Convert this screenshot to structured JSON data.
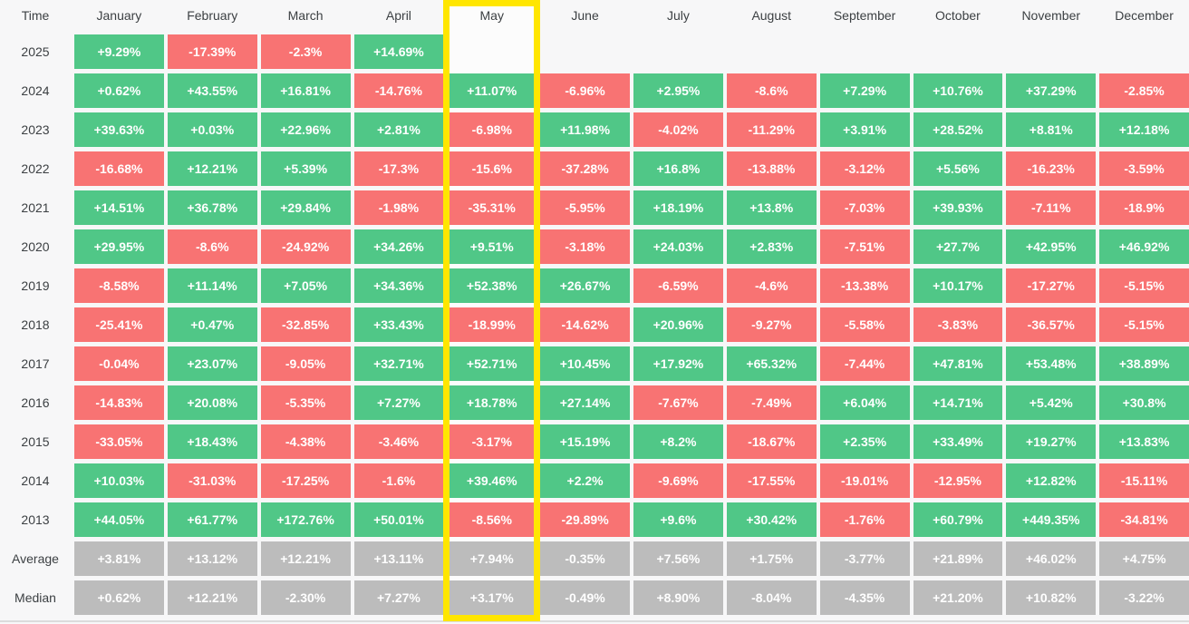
{
  "colors": {
    "positive": "#50c787",
    "negative": "#f87373",
    "neutral": "#bcbcbc",
    "highlight": "#ffe600",
    "highlight-bg": "#fcfcfc",
    "label-text": "#3c4043",
    "cell-text": "#ffffff",
    "page-bg": "#f7f7f8",
    "divider": "#dcdcdc"
  },
  "chart_data": {
    "type": "heatmap",
    "corner_label": "Time",
    "highlight_column": "May",
    "legend": "green = positive monthly return, red = negative monthly return, gray = summary rows",
    "categories": [
      "January",
      "February",
      "March",
      "April",
      "May",
      "June",
      "July",
      "August",
      "September",
      "October",
      "November",
      "December"
    ],
    "rows": [
      {
        "label": "2025",
        "type": "year",
        "values": [
          "+9.29%",
          "-17.39%",
          "-2.3%",
          "+14.69%",
          "",
          null,
          null,
          null,
          null,
          null,
          null,
          null
        ]
      },
      {
        "label": "2024",
        "type": "year",
        "values": [
          "+0.62%",
          "+43.55%",
          "+16.81%",
          "-14.76%",
          "+11.07%",
          "-6.96%",
          "+2.95%",
          "-8.6%",
          "+7.29%",
          "+10.76%",
          "+37.29%",
          "-2.85%"
        ]
      },
      {
        "label": "2023",
        "type": "year",
        "values": [
          "+39.63%",
          "+0.03%",
          "+22.96%",
          "+2.81%",
          "-6.98%",
          "+11.98%",
          "-4.02%",
          "-11.29%",
          "+3.91%",
          "+28.52%",
          "+8.81%",
          "+12.18%"
        ]
      },
      {
        "label": "2022",
        "type": "year",
        "values": [
          "-16.68%",
          "+12.21%",
          "+5.39%",
          "-17.3%",
          "-15.6%",
          "-37.28%",
          "+16.8%",
          "-13.88%",
          "-3.12%",
          "+5.56%",
          "-16.23%",
          "-3.59%"
        ]
      },
      {
        "label": "2021",
        "type": "year",
        "values": [
          "+14.51%",
          "+36.78%",
          "+29.84%",
          "-1.98%",
          "-35.31%",
          "-5.95%",
          "+18.19%",
          "+13.8%",
          "-7.03%",
          "+39.93%",
          "-7.11%",
          "-18.9%"
        ]
      },
      {
        "label": "2020",
        "type": "year",
        "values": [
          "+29.95%",
          "-8.6%",
          "-24.92%",
          "+34.26%",
          "+9.51%",
          "-3.18%",
          "+24.03%",
          "+2.83%",
          "-7.51%",
          "+27.7%",
          "+42.95%",
          "+46.92%"
        ]
      },
      {
        "label": "2019",
        "type": "year",
        "values": [
          "-8.58%",
          "+11.14%",
          "+7.05%",
          "+34.36%",
          "+52.38%",
          "+26.67%",
          "-6.59%",
          "-4.6%",
          "-13.38%",
          "+10.17%",
          "-17.27%",
          "-5.15%"
        ]
      },
      {
        "label": "2018",
        "type": "year",
        "values": [
          "-25.41%",
          "+0.47%",
          "-32.85%",
          "+33.43%",
          "-18.99%",
          "-14.62%",
          "+20.96%",
          "-9.27%",
          "-5.58%",
          "-3.83%",
          "-36.57%",
          "-5.15%"
        ]
      },
      {
        "label": "2017",
        "type": "year",
        "values": [
          "-0.04%",
          "+23.07%",
          "-9.05%",
          "+32.71%",
          "+52.71%",
          "+10.45%",
          "+17.92%",
          "+65.32%",
          "-7.44%",
          "+47.81%",
          "+53.48%",
          "+38.89%"
        ]
      },
      {
        "label": "2016",
        "type": "year",
        "values": [
          "-14.83%",
          "+20.08%",
          "-5.35%",
          "+7.27%",
          "+18.78%",
          "+27.14%",
          "-7.67%",
          "-7.49%",
          "+6.04%",
          "+14.71%",
          "+5.42%",
          "+30.8%"
        ]
      },
      {
        "label": "2015",
        "type": "year",
        "values": [
          "-33.05%",
          "+18.43%",
          "-4.38%",
          "-3.46%",
          "-3.17%",
          "+15.19%",
          "+8.2%",
          "-18.67%",
          "+2.35%",
          "+33.49%",
          "+19.27%",
          "+13.83%"
        ]
      },
      {
        "label": "2014",
        "type": "year",
        "values": [
          "+10.03%",
          "-31.03%",
          "-17.25%",
          "-1.6%",
          "+39.46%",
          "+2.2%",
          "-9.69%",
          "-17.55%",
          "-19.01%",
          "-12.95%",
          "+12.82%",
          "-15.11%"
        ]
      },
      {
        "label": "2013",
        "type": "year",
        "values": [
          "+44.05%",
          "+61.77%",
          "+172.76%",
          "+50.01%",
          "-8.56%",
          "-29.89%",
          "+9.6%",
          "+30.42%",
          "-1.76%",
          "+60.79%",
          "+449.35%",
          "-34.81%"
        ]
      },
      {
        "label": "Average",
        "type": "summary",
        "values": [
          "+3.81%",
          "+13.12%",
          "+12.21%",
          "+13.11%",
          "+7.94%",
          "-0.35%",
          "+7.56%",
          "+1.75%",
          "-3.77%",
          "+21.89%",
          "+46.02%",
          "+4.75%"
        ]
      },
      {
        "label": "Median",
        "type": "summary",
        "values": [
          "+0.62%",
          "+12.21%",
          "-2.30%",
          "+7.27%",
          "+3.17%",
          "-0.49%",
          "+8.90%",
          "-8.04%",
          "-4.35%",
          "+21.20%",
          "+10.82%",
          "-3.22%"
        ]
      }
    ]
  }
}
